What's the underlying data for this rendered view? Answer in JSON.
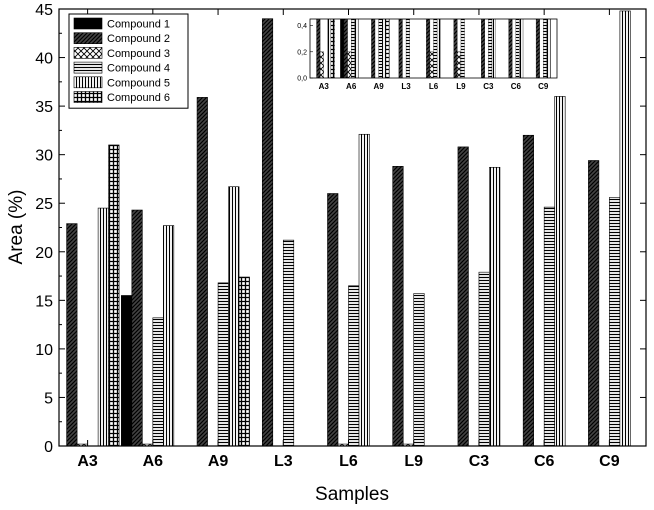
{
  "chart_data": {
    "type": "bar",
    "title": "",
    "xlabel": "Samples",
    "ylabel": "Area (%)",
    "ylim": [
      0,
      45
    ],
    "yticks": [
      0,
      5,
      10,
      15,
      20,
      25,
      30,
      35,
      40,
      45
    ],
    "grid": false,
    "legend_position": "top-left",
    "categories": [
      "A3",
      "A6",
      "A9",
      "L3",
      "L6",
      "L9",
      "C3",
      "C6",
      "C9"
    ],
    "series": [
      {
        "name": "Compound 1",
        "pattern": "solid",
        "values": [
          0,
          15.5,
          0,
          0,
          0,
          0,
          0,
          0,
          0
        ]
      },
      {
        "name": "Compound 2",
        "pattern": "diagonal",
        "values": [
          22.9,
          24.3,
          35.9,
          44,
          26,
          28.8,
          30.8,
          32,
          29.4
        ]
      },
      {
        "name": "Compound 3",
        "pattern": "crosshatch",
        "values": [
          0.2,
          0.2,
          0,
          0,
          0.2,
          0.2,
          0,
          0,
          0
        ]
      },
      {
        "name": "Compound 4",
        "pattern": "horizontal",
        "values": [
          0,
          13.2,
          16.8,
          21.2,
          16.5,
          15.7,
          17.9,
          24.6,
          25.6
        ]
      },
      {
        "name": "Compound 5",
        "pattern": "vertical",
        "values": [
          24.5,
          22.7,
          26.7,
          0,
          32.1,
          0,
          28.7,
          36,
          44.8
        ]
      },
      {
        "name": "Compound 6",
        "pattern": "grid",
        "values": [
          31,
          0,
          17.4,
          0,
          0,
          0,
          0,
          0,
          0
        ]
      }
    ],
    "inset": {
      "ylim": [
        0,
        0.45
      ],
      "yticks": [
        "0,0",
        "0,2",
        "0,4"
      ],
      "categories": [
        "A3",
        "A6",
        "A9",
        "L3",
        "L6",
        "L9",
        "C3",
        "C6",
        "C9"
      ]
    }
  }
}
